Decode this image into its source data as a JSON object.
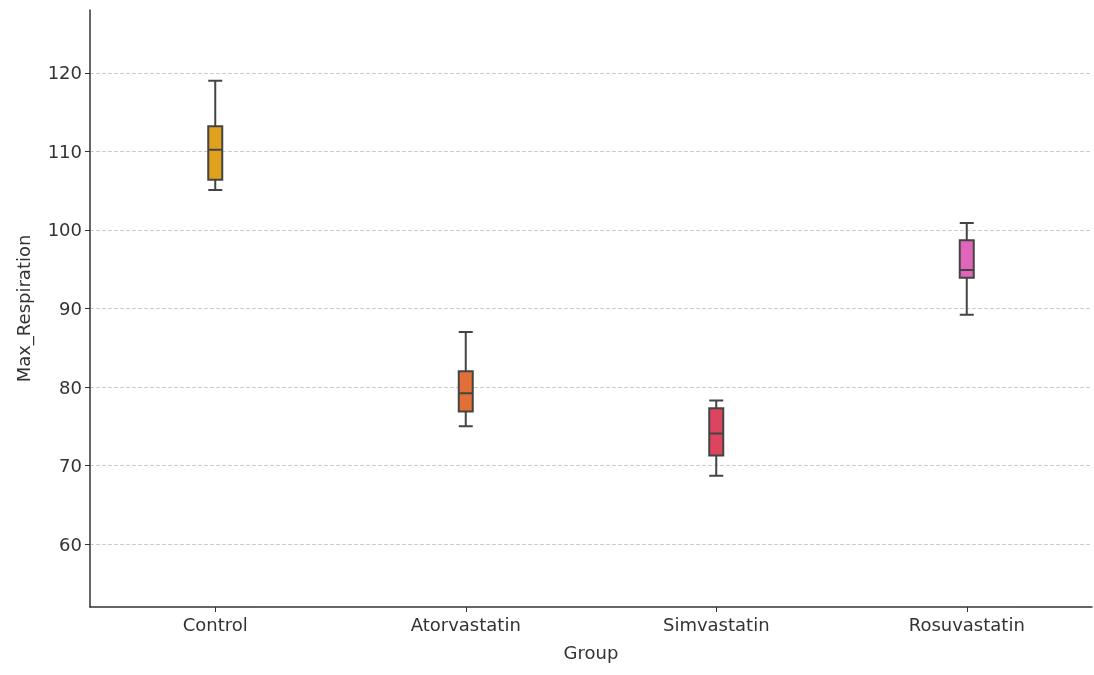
{
  "chart_data": {
    "type": "box",
    "xlabel": "Group",
    "ylabel": "Max_Respiration",
    "categories": [
      "Control",
      "Atorvastatin",
      "Simvastatin",
      "Rosuvastatin"
    ],
    "colors": [
      "#e0a21e",
      "#e07035",
      "#dc4560",
      "#e066bb"
    ],
    "boxes": [
      {
        "low": 105.1,
        "q1": 106.4,
        "median": 110.2,
        "q3": 113.2,
        "high": 119.0
      },
      {
        "low": 75.0,
        "q1": 76.9,
        "median": 79.2,
        "q3": 82.0,
        "high": 87.0
      },
      {
        "low": 68.7,
        "q1": 71.3,
        "median": 74.1,
        "q3": 77.3,
        "high": 78.3
      },
      {
        "low": 89.2,
        "q1": 93.9,
        "median": 94.9,
        "q3": 98.7,
        "high": 100.9
      }
    ],
    "ylim": [
      52,
      128
    ],
    "yticks": [
      60,
      70,
      80,
      90,
      100,
      110,
      120
    ],
    "grid": "y"
  }
}
